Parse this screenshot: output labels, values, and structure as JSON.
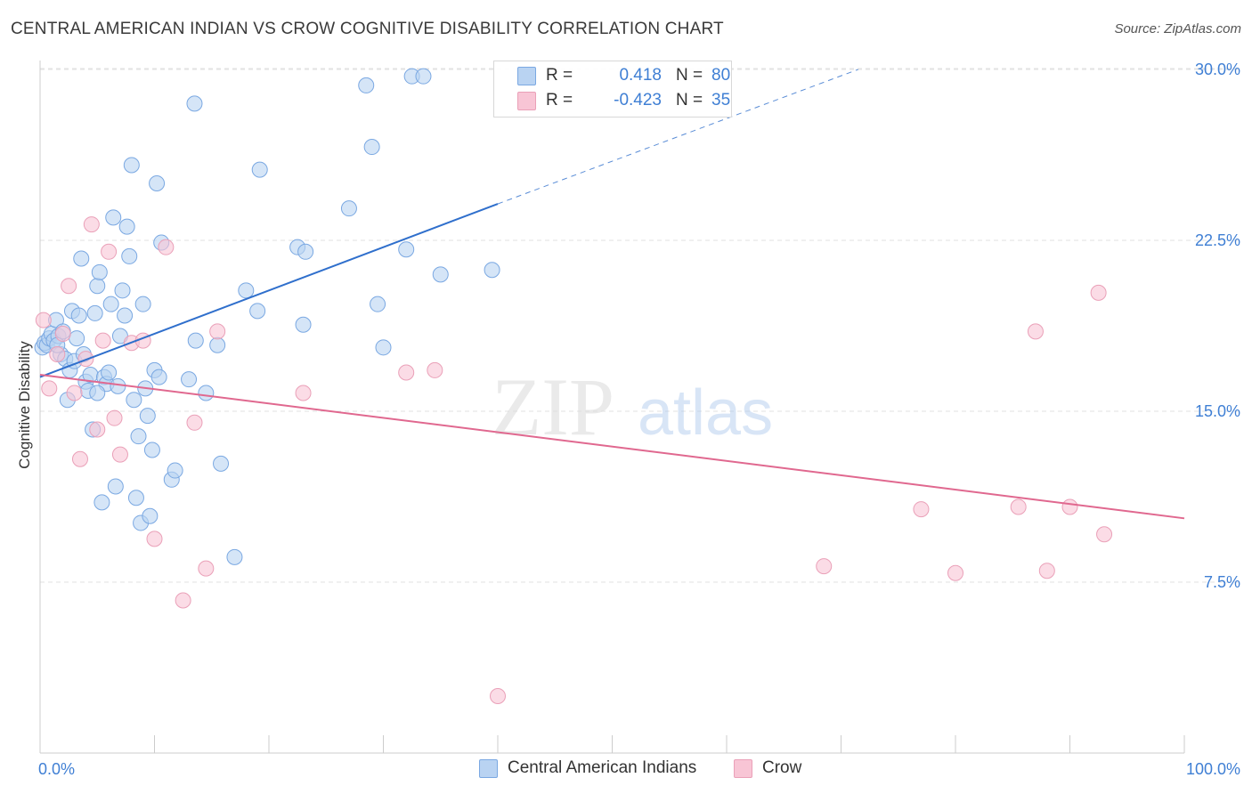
{
  "title": "CENTRAL AMERICAN INDIAN VS CROW COGNITIVE DISABILITY CORRELATION CHART",
  "source": "Source: ZipAtlas.com",
  "watermark": {
    "zip": "ZIP",
    "atlas": "atlas"
  },
  "legend": {
    "rows": [
      {
        "r_label": "R =",
        "r_value": "0.418",
        "n_label": "N =",
        "n_value": "80"
      },
      {
        "r_label": "R =",
        "r_value": "-0.423",
        "n_label": "N =",
        "n_value": "35"
      }
    ]
  },
  "bottom_legend": {
    "series1": "Central American Indians",
    "series2": "Crow"
  },
  "colors": {
    "blue_fill": "#b9d3f2",
    "blue_stroke": "#7aa8e2",
    "blue_line": "#2f6fcc",
    "pink_fill": "#f8c5d5",
    "pink_stroke": "#eaa0b8",
    "pink_line": "#e0688f",
    "tick_text": "#3f7fd4",
    "grid": "#e2e2e2"
  },
  "chart_data": {
    "type": "scatter",
    "title": "CENTRAL AMERICAN INDIAN VS CROW COGNITIVE DISABILITY CORRELATION CHART",
    "xlabel": "",
    "ylabel": "Cognitive Disability",
    "xlim": [
      0,
      100
    ],
    "ylim": [
      0,
      31
    ],
    "x_tick_labels": [
      "0.0%",
      "100.0%"
    ],
    "y_ticks": [
      7.5,
      15.0,
      22.5,
      30.0
    ],
    "y_tick_labels": [
      "7.5%",
      "15.0%",
      "22.5%",
      "30.0%"
    ],
    "grid": true,
    "legend_position": "top-center",
    "series": [
      {
        "name": "Central American Indians",
        "r": 0.418,
        "n": 80,
        "trend": {
          "x0": 0,
          "y0": 16.5,
          "x1": 40,
          "y1": 24.1,
          "dash_to_x": 71.5,
          "dash_to_y": 30.0
        },
        "points": [
          [
            0.2,
            17.8
          ],
          [
            0.4,
            18.0
          ],
          [
            0.6,
            17.9
          ],
          [
            0.8,
            18.2
          ],
          [
            1.0,
            18.4
          ],
          [
            1.2,
            18.1
          ],
          [
            1.4,
            19.0
          ],
          [
            1.6,
            18.3
          ],
          [
            1.8,
            17.5
          ],
          [
            2.0,
            18.5
          ],
          [
            2.2,
            17.3
          ],
          [
            2.4,
            15.5
          ],
          [
            2.6,
            16.8
          ],
          [
            2.8,
            19.4
          ],
          [
            3.0,
            17.2
          ],
          [
            3.2,
            18.2
          ],
          [
            3.4,
            19.2
          ],
          [
            3.6,
            21.7
          ],
          [
            3.8,
            17.5
          ],
          [
            4.0,
            16.3
          ],
          [
            4.2,
            15.9
          ],
          [
            4.4,
            16.6
          ],
          [
            4.6,
            14.2
          ],
          [
            4.8,
            19.3
          ],
          [
            5.0,
            20.5
          ],
          [
            5.2,
            21.1
          ],
          [
            5.4,
            11.0
          ],
          [
            5.6,
            16.5
          ],
          [
            5.8,
            16.2
          ],
          [
            6.0,
            16.7
          ],
          [
            6.2,
            19.7
          ],
          [
            6.4,
            23.5
          ],
          [
            6.6,
            11.7
          ],
          [
            6.8,
            16.1
          ],
          [
            7.0,
            18.3
          ],
          [
            7.2,
            20.3
          ],
          [
            7.4,
            19.2
          ],
          [
            7.6,
            23.1
          ],
          [
            7.8,
            21.8
          ],
          [
            8.0,
            25.8
          ],
          [
            8.2,
            15.5
          ],
          [
            8.4,
            11.2
          ],
          [
            8.6,
            13.9
          ],
          [
            8.8,
            10.1
          ],
          [
            9.0,
            19.7
          ],
          [
            9.2,
            16.0
          ],
          [
            9.4,
            14.8
          ],
          [
            9.6,
            10.4
          ],
          [
            9.8,
            13.3
          ],
          [
            10.0,
            16.8
          ],
          [
            10.2,
            25.0
          ],
          [
            10.4,
            16.5
          ],
          [
            10.6,
            22.4
          ],
          [
            11.5,
            12.0
          ],
          [
            11.8,
            12.4
          ],
          [
            13.5,
            28.5
          ],
          [
            13.6,
            18.1
          ],
          [
            14.5,
            15.8
          ],
          [
            15.5,
            17.9
          ],
          [
            15.8,
            12.7
          ],
          [
            17.0,
            8.6
          ],
          [
            18.0,
            20.3
          ],
          [
            19.0,
            19.4
          ],
          [
            19.2,
            25.6
          ],
          [
            22.5,
            22.2
          ],
          [
            23.0,
            18.8
          ],
          [
            23.2,
            22.0
          ],
          [
            27.0,
            23.9
          ],
          [
            28.5,
            29.3
          ],
          [
            29.0,
            26.6
          ],
          [
            29.5,
            19.7
          ],
          [
            30.0,
            17.8
          ],
          [
            32.0,
            22.1
          ],
          [
            32.5,
            29.7
          ],
          [
            33.5,
            29.7
          ],
          [
            35.0,
            21.0
          ],
          [
            39.5,
            21.2
          ],
          [
            13.0,
            16.4
          ],
          [
            5.0,
            15.8
          ],
          [
            1.5,
            17.9
          ]
        ]
      },
      {
        "name": "Crow",
        "r": -0.423,
        "n": 35,
        "trend": {
          "x0": 0,
          "y0": 16.6,
          "x1": 100,
          "y1": 10.3
        },
        "points": [
          [
            0.3,
            19.0
          ],
          [
            0.8,
            16.0
          ],
          [
            1.5,
            17.5
          ],
          [
            2.0,
            18.4
          ],
          [
            2.5,
            20.5
          ],
          [
            3.0,
            15.8
          ],
          [
            3.5,
            12.9
          ],
          [
            4.0,
            17.3
          ],
          [
            4.5,
            23.2
          ],
          [
            5.0,
            14.2
          ],
          [
            5.5,
            18.1
          ],
          [
            6.0,
            22.0
          ],
          [
            6.5,
            14.7
          ],
          [
            7.0,
            13.1
          ],
          [
            8.0,
            18.0
          ],
          [
            9.0,
            18.1
          ],
          [
            10.0,
            9.4
          ],
          [
            11.0,
            22.2
          ],
          [
            12.5,
            6.7
          ],
          [
            13.5,
            14.5
          ],
          [
            14.5,
            8.1
          ],
          [
            15.5,
            18.5
          ],
          [
            23.0,
            15.8
          ],
          [
            32.0,
            16.7
          ],
          [
            34.5,
            16.8
          ],
          [
            40.0,
            2.5
          ],
          [
            68.5,
            8.2
          ],
          [
            77.0,
            10.7
          ],
          [
            80.0,
            7.9
          ],
          [
            85.5,
            10.8
          ],
          [
            87.0,
            18.5
          ],
          [
            88.0,
            8.0
          ],
          [
            90.0,
            10.8
          ],
          [
            92.5,
            20.2
          ],
          [
            93.0,
            9.6
          ]
        ]
      }
    ]
  }
}
